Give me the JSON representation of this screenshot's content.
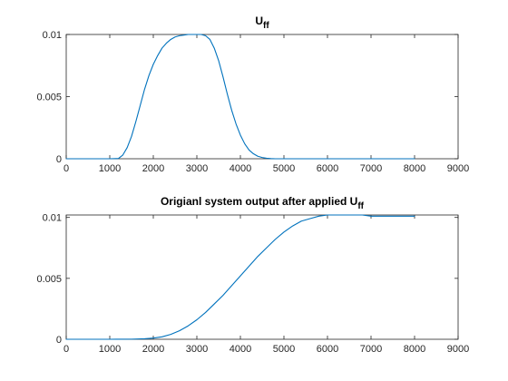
{
  "chart_data": [
    {
      "type": "line",
      "title": "U",
      "title_subscript": "ff",
      "xlabel": "",
      "ylabel": "",
      "xlim": [
        0,
        9000
      ],
      "ylim": [
        0,
        0.01
      ],
      "xticks": [
        "0",
        "1000",
        "2000",
        "3000",
        "4000",
        "5000",
        "6000",
        "7000",
        "8000",
        "9000"
      ],
      "xtick_values": [
        0,
        1000,
        2000,
        3000,
        4000,
        5000,
        6000,
        7000,
        8000,
        9000
      ],
      "yticks": [
        "0",
        "0.005",
        "0.01"
      ],
      "ytick_values": [
        0,
        0.005,
        0.01
      ],
      "grid": false,
      "line_color": "#0072BD",
      "series": [
        {
          "x": [
            0,
            1000,
            1200,
            1300,
            1400,
            1500,
            1600,
            1700,
            1800,
            1900,
            2000,
            2100,
            2200,
            2300,
            2400,
            2500,
            2600,
            2700,
            2800,
            2900,
            3000,
            3100,
            3200,
            3300,
            3400,
            3500,
            3600,
            3700,
            3800,
            3900,
            4000,
            4100,
            4200,
            4300,
            4400,
            4500,
            4600,
            4700,
            4800,
            5000,
            6000,
            7000,
            8000
          ],
          "y": [
            0,
            0,
            2e-05,
            0.0003,
            0.0009,
            0.0018,
            0.003,
            0.0043,
            0.0056,
            0.0067,
            0.0076,
            0.0083,
            0.0089,
            0.0093,
            0.0096,
            0.0098,
            0.0099,
            0.00995,
            0.01,
            0.01,
            0.01,
            0.01,
            0.0099,
            0.0096,
            0.0089,
            0.0079,
            0.0066,
            0.0052,
            0.0039,
            0.0028,
            0.0019,
            0.0012,
            0.0007,
            0.0004,
            0.0002,
            0.0001,
            4e-05,
            1e-05,
            0,
            0,
            0,
            0,
            0
          ]
        }
      ]
    },
    {
      "type": "line",
      "title": "Origianl system output after applied U",
      "title_subscript": "ff",
      "xlabel": "",
      "ylabel": "",
      "xlim": [
        0,
        9000
      ],
      "ylim": [
        0,
        0.0102
      ],
      "xticks": [
        "0",
        "1000",
        "2000",
        "3000",
        "4000",
        "5000",
        "6000",
        "7000",
        "8000",
        "9000"
      ],
      "xtick_values": [
        0,
        1000,
        2000,
        3000,
        4000,
        5000,
        6000,
        7000,
        8000,
        9000
      ],
      "yticks": [
        "0",
        "0.005",
        "0.01"
      ],
      "ytick_values": [
        0,
        0.005,
        0.01
      ],
      "grid": false,
      "line_color": "#0072BD",
      "series": [
        {
          "x": [
            0,
            1000,
            1500,
            1800,
            2000,
            2200,
            2400,
            2600,
            2800,
            3000,
            3200,
            3400,
            3600,
            3800,
            4000,
            4200,
            4400,
            4600,
            4800,
            5000,
            5200,
            5400,
            5600,
            5800,
            6000,
            6200,
            6400,
            6600,
            6800,
            7000,
            7500,
            8000
          ],
          "y": [
            0,
            0,
            1e-05,
            4e-05,
            0.0001,
            0.0002,
            0.0004,
            0.0007,
            0.0011,
            0.0016,
            0.0022,
            0.0029,
            0.0036,
            0.0044,
            0.0052,
            0.006,
            0.0068,
            0.0075,
            0.0082,
            0.0088,
            0.0093,
            0.0097,
            0.0099,
            0.0101,
            0.0102,
            0.0102,
            0.0102,
            0.0102,
            0.0102,
            0.0101,
            0.0101,
            0.0101
          ]
        }
      ]
    }
  ]
}
